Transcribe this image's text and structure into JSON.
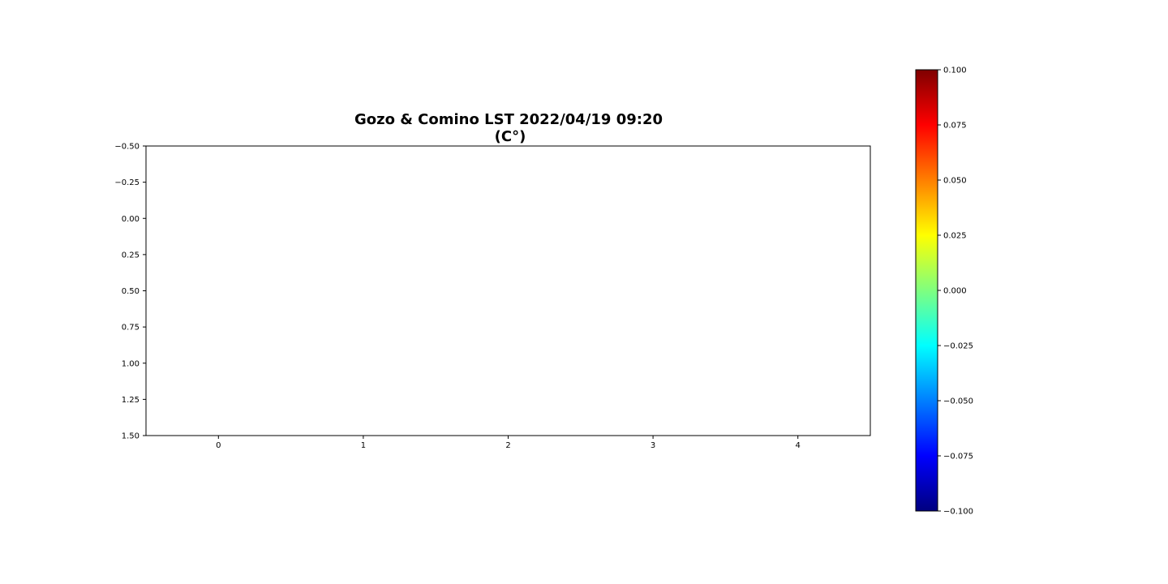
{
  "chart_data": {
    "type": "heatmap",
    "title": "Gozo & Comino LST 2022/04/19 09:20",
    "subtitle": "(C°)",
    "xlabel": "",
    "ylabel": "",
    "x_ticks": [
      "0",
      "1",
      "2",
      "3",
      "4"
    ],
    "y_ticks": [
      "−0.50",
      "−0.25",
      "0.00",
      "0.25",
      "0.50",
      "0.75",
      "1.00",
      "1.25",
      "1.50"
    ],
    "xlim": [
      -0.5,
      4.5
    ],
    "ylim": [
      1.5,
      -0.5
    ],
    "values": [],
    "colorbar": {
      "colormap": "jet",
      "range": [
        -0.1,
        0.1
      ],
      "ticks": [
        "−0.100",
        "−0.075",
        "−0.050",
        "−0.025",
        "0.000",
        "0.025",
        "0.050",
        "0.075",
        "0.100"
      ],
      "tick_values": [
        -0.1,
        -0.075,
        -0.05,
        -0.025,
        0.0,
        0.025,
        0.05,
        0.075,
        0.1
      ]
    },
    "grid": false
  },
  "colors": {
    "jet_stops": [
      "#00007f",
      "#0000ff",
      "#007fff",
      "#00ffff",
      "#7fff7f",
      "#ffff00",
      "#ff7f00",
      "#ff0000",
      "#7f0000"
    ]
  }
}
